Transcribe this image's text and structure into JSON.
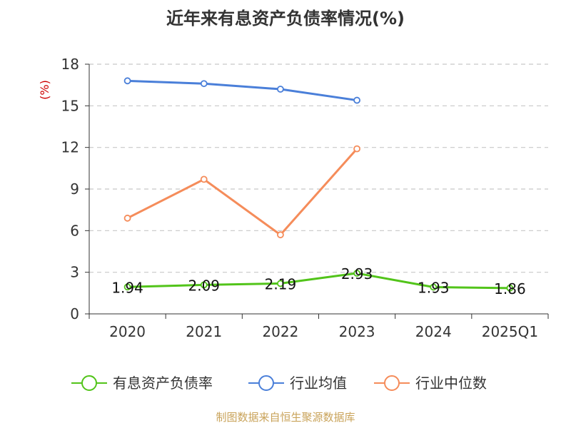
{
  "chart_data": {
    "type": "line",
    "title": "近年来有息资产负债率情况(%)",
    "ylabel": "(%)",
    "xlabel": "",
    "categories": [
      "2020",
      "2021",
      "2022",
      "2023",
      "2024",
      "2025Q1"
    ],
    "ylim": [
      0,
      18
    ],
    "yticks": [
      0,
      3,
      6,
      9,
      12,
      15,
      18
    ],
    "grid": true,
    "legend_position": "bottom",
    "series": [
      {
        "name": "有息资产负债率",
        "color": "#52c41a",
        "values": [
          1.94,
          2.09,
          2.19,
          2.93,
          1.93,
          1.86
        ],
        "data_labels": [
          "1.94",
          "2.09",
          "2.19",
          "2.93",
          "1.93",
          "1.86"
        ]
      },
      {
        "name": "行业均值",
        "color": "#4a7fd9",
        "values": [
          16.8,
          16.6,
          16.2,
          15.4,
          null,
          null
        ]
      },
      {
        "name": "行业中位数",
        "color": "#f58c5a",
        "values": [
          6.9,
          9.7,
          5.7,
          11.9,
          null,
          null
        ]
      }
    ]
  },
  "source": "制图数据来自恒生聚源数据库"
}
